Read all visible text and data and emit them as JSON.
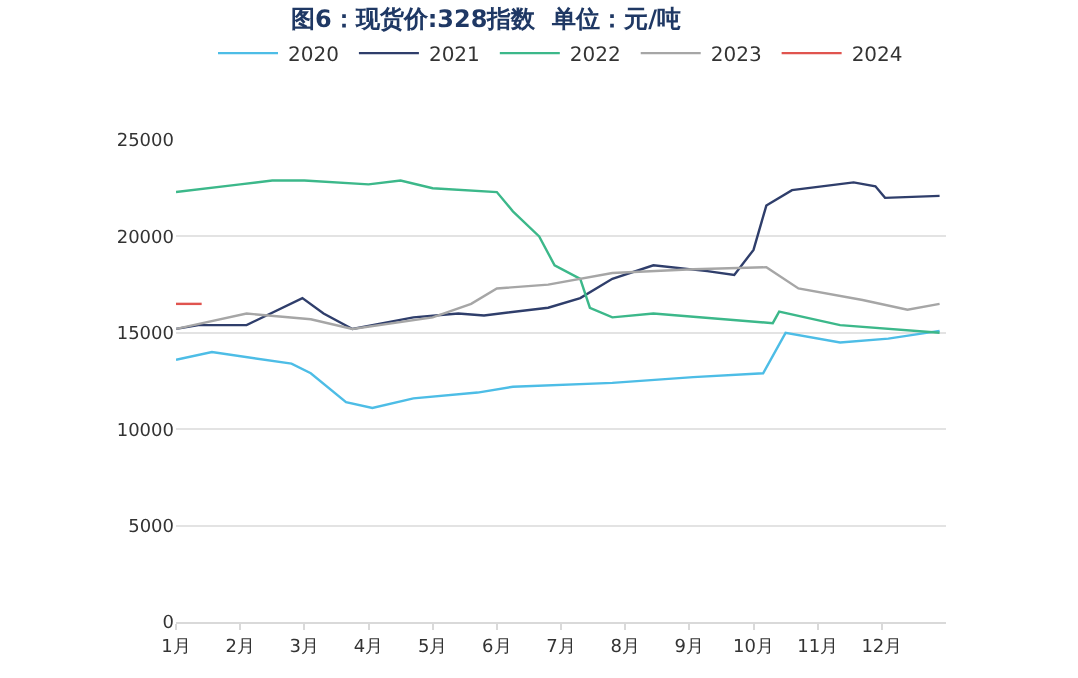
{
  "chart_data": {
    "type": "line",
    "title": "图6：现货价:328指数  单位：元/吨",
    "xlim": [
      1,
      13
    ],
    "xticks": [
      {
        "value": 1,
        "label": "1月"
      },
      {
        "value": 2,
        "label": "2月"
      },
      {
        "value": 3,
        "label": "3月"
      },
      {
        "value": 4,
        "label": "4月"
      },
      {
        "value": 5,
        "label": "5月"
      },
      {
        "value": 6,
        "label": "6月"
      },
      {
        "value": 7,
        "label": "7月"
      },
      {
        "value": 8,
        "label": "8月"
      },
      {
        "value": 9,
        "label": "9月"
      },
      {
        "value": 10,
        "label": "10月"
      },
      {
        "value": 11,
        "label": "11月"
      },
      {
        "value": 12,
        "label": "12月"
      }
    ],
    "ylim": [
      0,
      25000
    ],
    "yticks": [
      0,
      5000,
      10000,
      15000,
      20000,
      25000
    ],
    "grid": "y",
    "legend": "top",
    "marker": "none",
    "line_style": "solid",
    "series": [
      {
        "name": "2020",
        "color": "#4dbde6",
        "x": [
          1,
          1.56,
          2.8,
          3.1,
          3.65,
          4.06,
          4.7,
          5.7,
          6.25,
          7.8,
          9.06,
          10.15,
          10.5,
          11.35,
          12.1,
          12.9
        ],
        "values": [
          13600,
          14000,
          13400,
          12900,
          11400,
          11100,
          11600,
          11900,
          12200,
          12400,
          12700,
          12900,
          15000,
          14500,
          14700,
          15100
        ]
      },
      {
        "name": "2021",
        "color": "#2f3e6b",
        "x": [
          1,
          1.35,
          2.1,
          2.97,
          3.3,
          3.75,
          4.7,
          5.4,
          5.8,
          6.8,
          7.3,
          7.8,
          8.44,
          9.28,
          9.7,
          10,
          10.2,
          10.6,
          11.56,
          11.9,
          12.05,
          12.9
        ],
        "values": [
          15200,
          15400,
          15400,
          16800,
          16000,
          15200,
          15800,
          16000,
          15900,
          16300,
          16800,
          17800,
          18500,
          18200,
          18000,
          19300,
          21600,
          22400,
          22800,
          22600,
          22000,
          22100
        ]
      },
      {
        "name": "2022",
        "color": "#3cb88a",
        "x": [
          1,
          2,
          2.5,
          3,
          4,
          4.5,
          5,
          6,
          6.25,
          6.66,
          6.9,
          7.3,
          7.45,
          7.8,
          8.44,
          10.3,
          10.4,
          11.35,
          12.9
        ],
        "values": [
          22300,
          22700,
          22900,
          22900,
          22700,
          22900,
          22500,
          22300,
          21300,
          20000,
          18500,
          17800,
          16300,
          15800,
          16000,
          15500,
          16100,
          15400,
          15000
        ]
      },
      {
        "name": "2023",
        "color": "#a6a6a6",
        "x": [
          1,
          2.1,
          3.1,
          3.75,
          5,
          5.6,
          6,
          6.8,
          7.8,
          9.06,
          10.2,
          10.7,
          11.7,
          12.4,
          12.9
        ],
        "values": [
          15200,
          16000,
          15700,
          15200,
          15800,
          16500,
          17300,
          17500,
          18100,
          18300,
          18400,
          17300,
          16700,
          16200,
          16500
        ]
      },
      {
        "name": "2024",
        "color": "#e0544f",
        "x": [
          1,
          1.4
        ],
        "values": [
          16500,
          16500
        ]
      }
    ]
  }
}
